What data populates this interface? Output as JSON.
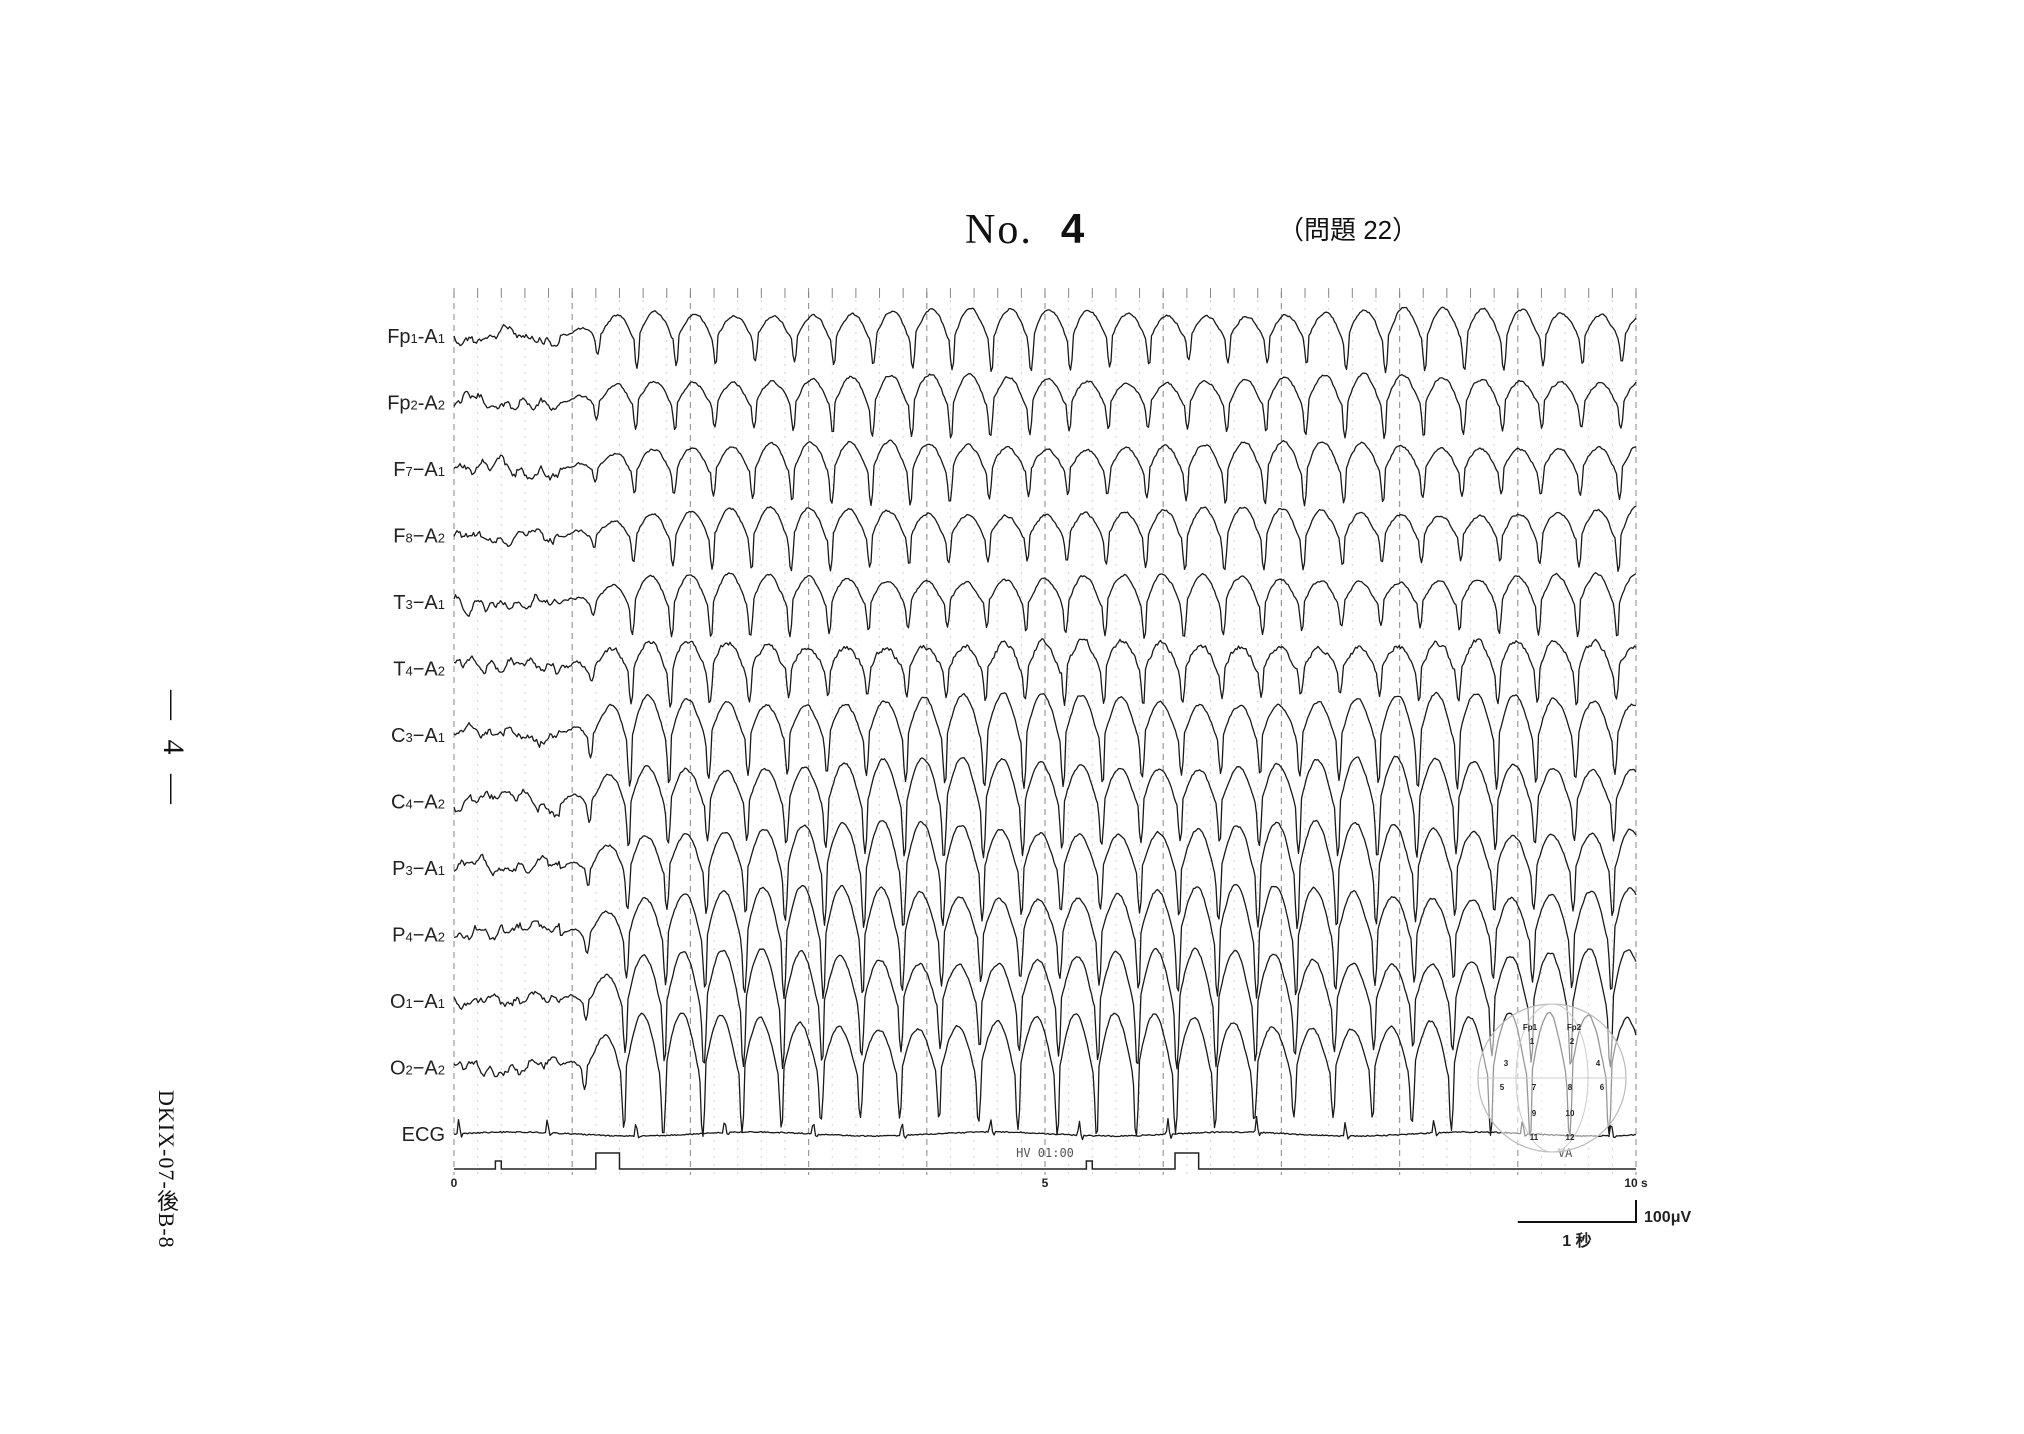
{
  "header": {
    "no_prefix": "No.",
    "no_number": "4",
    "question": "（問題 22）"
  },
  "side": {
    "page_mark": "— 4 —",
    "doc_code": "DKIX-07-後B-8"
  },
  "chart_data": {
    "type": "line",
    "title": "",
    "channels": [
      "Fp1-A1",
      "Fp2-A2",
      "F7-A1",
      "F8-A2",
      "T3-A1",
      "T4-A2",
      "C3-A1",
      "C4-A2",
      "P3-A1",
      "P4-A2",
      "O1-A1",
      "O2-A2",
      "ECG"
    ],
    "channel_labels": [
      {
        "base": "Fp",
        "s1": "1",
        "mid": "-A",
        "s2": "1"
      },
      {
        "base": "Fp",
        "s1": "2",
        "mid": "-A",
        "s2": "2"
      },
      {
        "base": "F",
        "s1": "7",
        "mid": "−A",
        "s2": "1"
      },
      {
        "base": "F",
        "s1": "8",
        "mid": "−A",
        "s2": "2"
      },
      {
        "base": "T",
        "s1": "3",
        "mid": "−A",
        "s2": "1"
      },
      {
        "base": "T",
        "s1": "4",
        "mid": "−A",
        "s2": "2"
      },
      {
        "base": "C",
        "s1": "3",
        "mid": "−A",
        "s2": "1"
      },
      {
        "base": "C",
        "s1": "4",
        "mid": "−A",
        "s2": "2"
      },
      {
        "base": "P",
        "s1": "3",
        "mid": "−A",
        "s2": "1"
      },
      {
        "base": "P",
        "s1": "4",
        "mid": "−A",
        "s2": "2"
      },
      {
        "base": "O",
        "s1": "1",
        "mid": "−A",
        "s2": "1"
      },
      {
        "base": "O",
        "s1": "2",
        "mid": "−A",
        "s2": "2"
      },
      {
        "base": "ECG",
        "s1": "",
        "mid": "",
        "s2": ""
      }
    ],
    "x_unit": "s",
    "xlim": [
      0,
      10
    ],
    "x_ticks": [
      {
        "value": 0,
        "label": "0"
      },
      {
        "value": 5,
        "label": "5"
      },
      {
        "value": 10,
        "label": "10 s"
      }
    ],
    "seizure_onset_s": 0.9,
    "spike_wave_frequency_hz": 3,
    "ecg_rr_interval_s": 0.75,
    "annotations": [
      {
        "x": 5.0,
        "text": "HV 01:00"
      },
      {
        "x": 9.4,
        "text": "VA"
      }
    ],
    "marker_pulses_s": [
      [
        0.35,
        0.4
      ],
      [
        1.2,
        1.4
      ],
      [
        5.35,
        5.4
      ],
      [
        6.1,
        6.3
      ]
    ],
    "scale_bar": {
      "amplitude_label": "100μV",
      "time_label": "1 秒",
      "time_s": 1
    },
    "electrode_map": {
      "electrodes": [
        "Fp1",
        "Fp2"
      ],
      "numbers": [
        "1",
        "2",
        "3",
        "4",
        "5",
        "6",
        "7",
        "8",
        "9",
        "10",
        "11",
        "12"
      ]
    }
  }
}
